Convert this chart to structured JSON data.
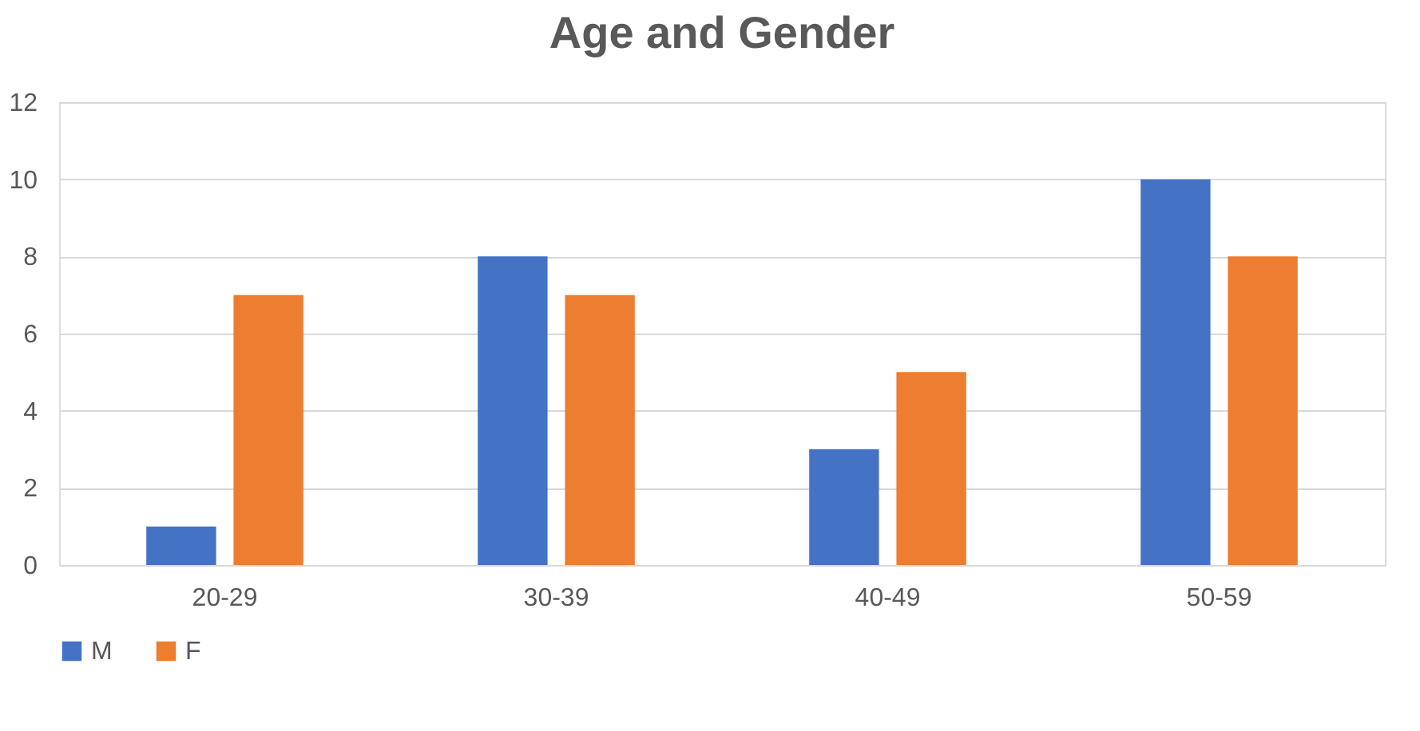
{
  "chart_data": {
    "type": "bar",
    "title": "Age and Gender",
    "categories": [
      "20-29",
      "30-39",
      "40-49",
      "50-59"
    ],
    "series": [
      {
        "name": "M",
        "color": "#4472c4",
        "values": [
          1,
          8,
          3,
          10
        ]
      },
      {
        "name": "F",
        "color": "#ed7d31",
        "values": [
          7,
          7,
          5,
          8
        ]
      }
    ],
    "ylim": [
      0,
      12
    ],
    "yticks": [
      0,
      2,
      4,
      6,
      8,
      10,
      12
    ],
    "grid": "y",
    "legend": "bottom"
  }
}
